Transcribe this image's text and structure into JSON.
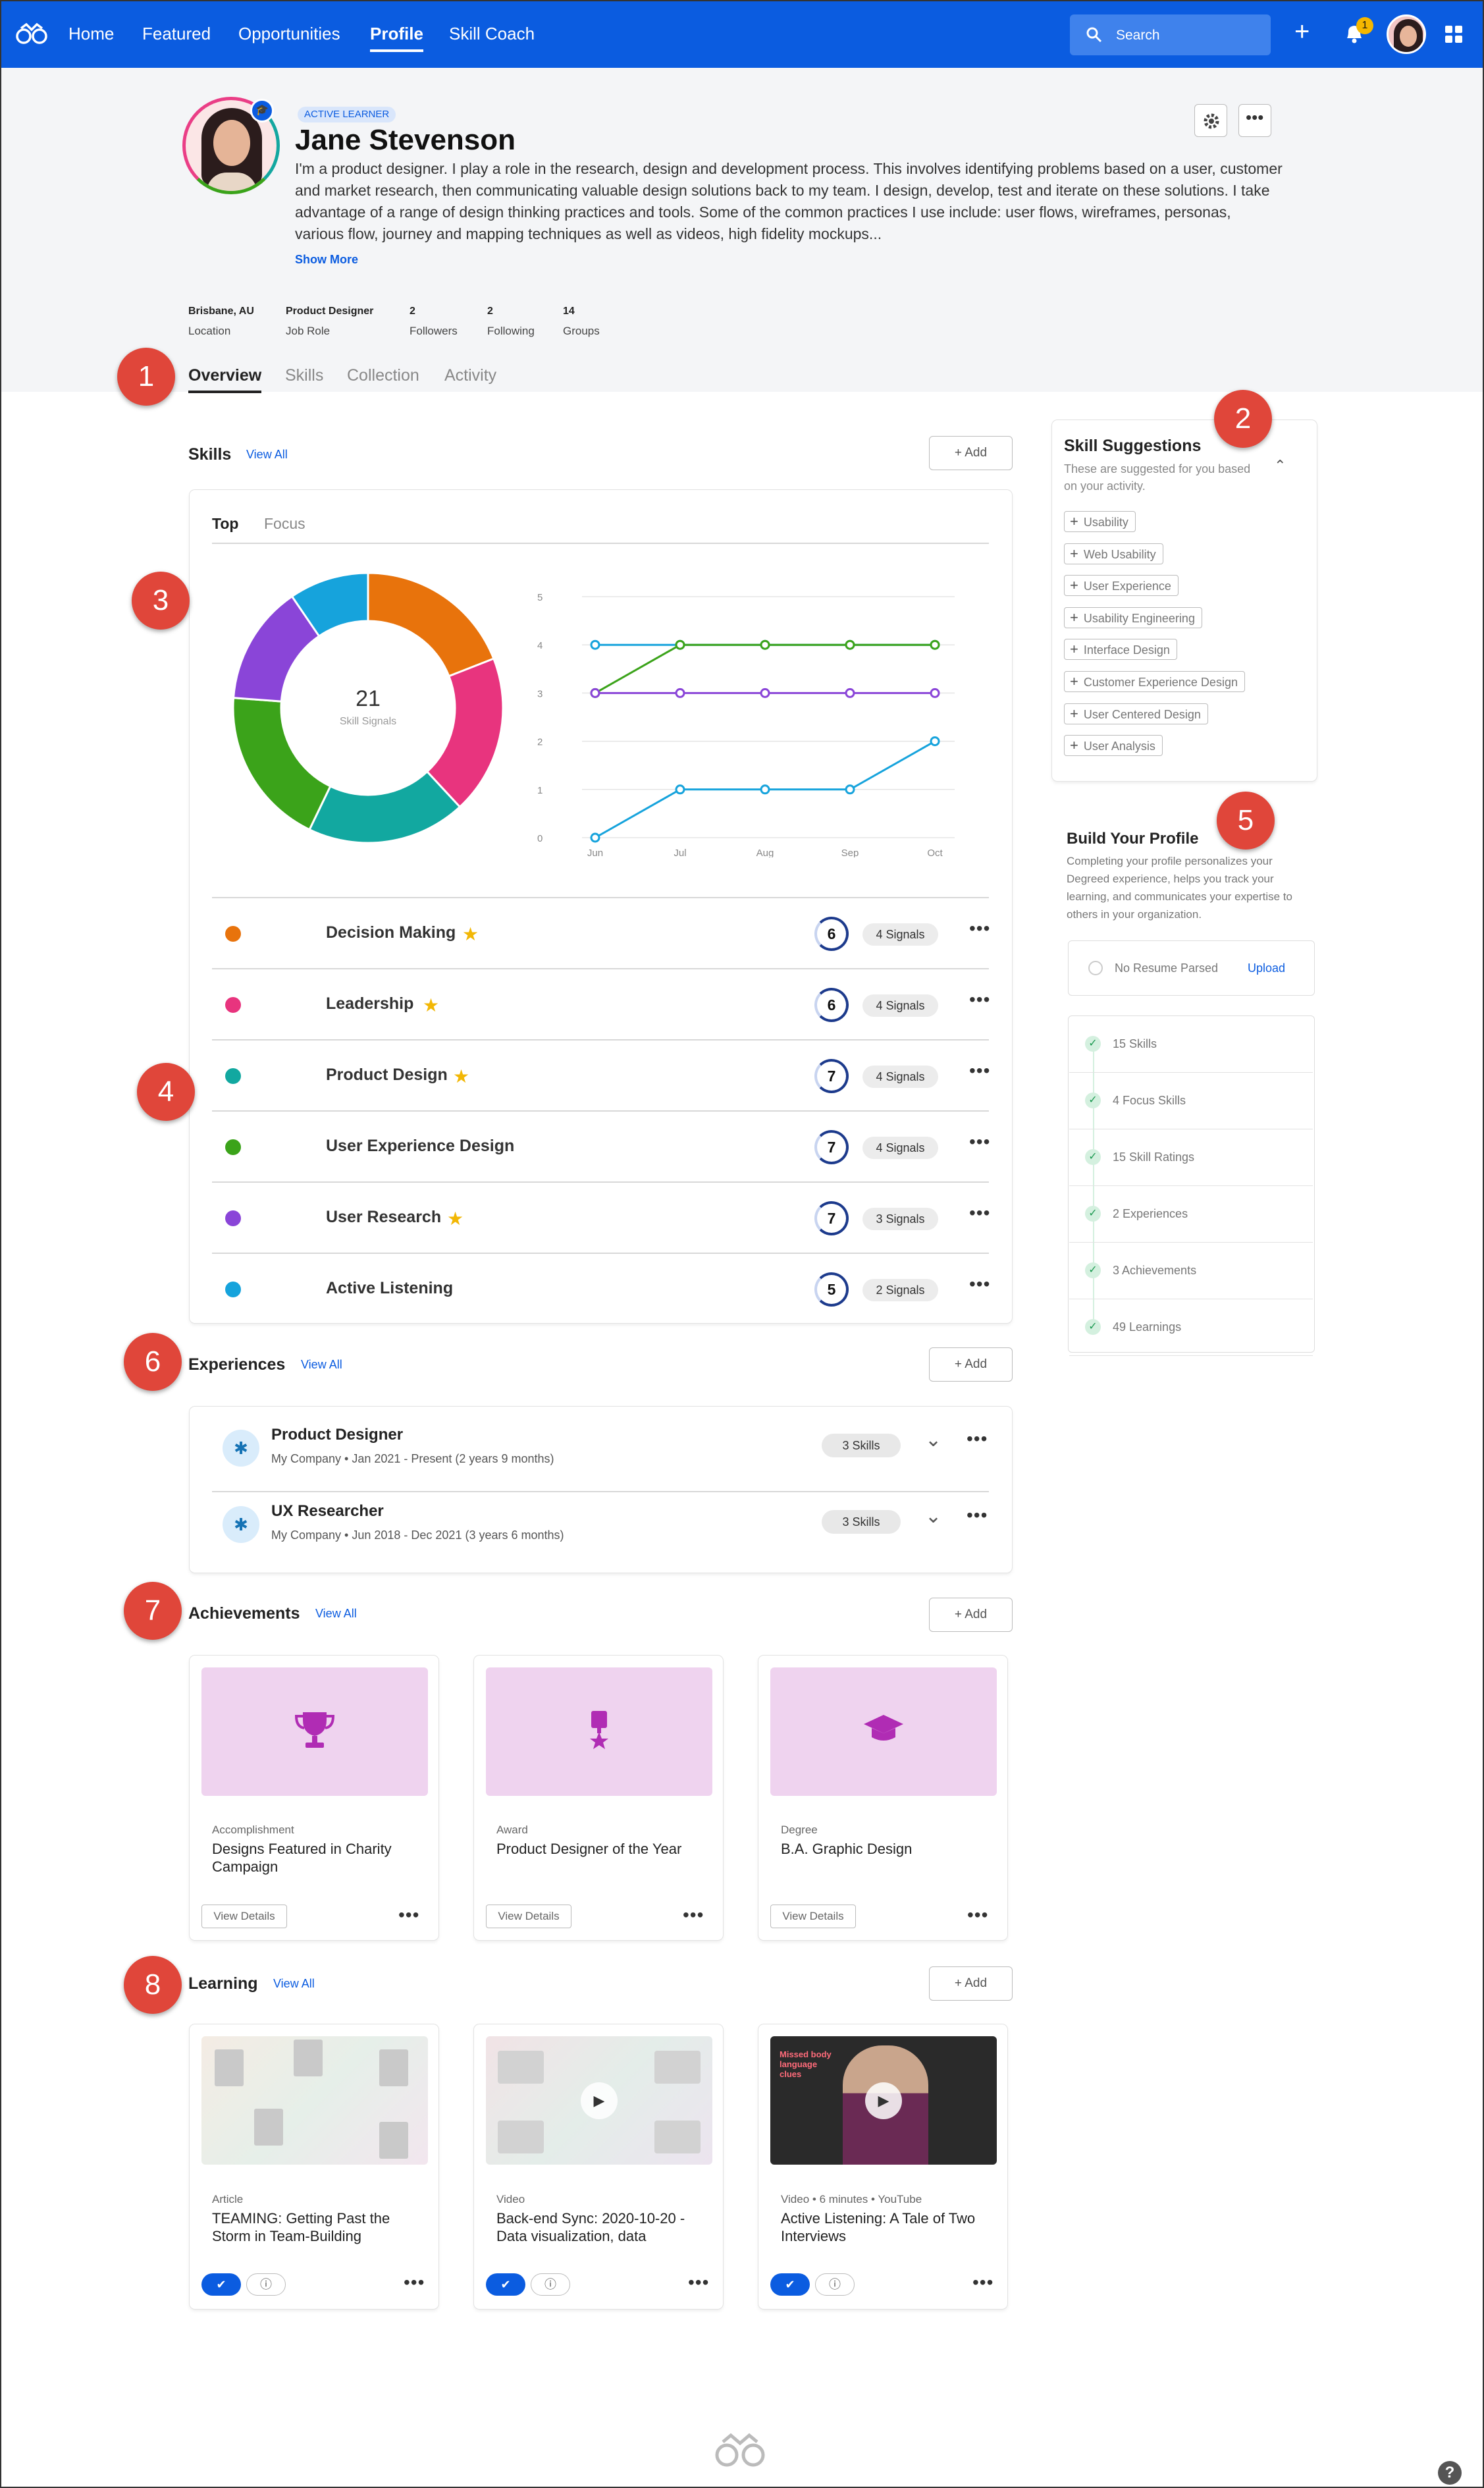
{
  "nav": {
    "items": [
      "Home",
      "Featured",
      "Opportunities",
      "Profile",
      "Skill Coach"
    ],
    "search_label": "Search",
    "notification_count": "1"
  },
  "profile": {
    "badge": "ACTIVE LEARNER",
    "name": "Jane Stevenson",
    "bio": "I'm a product designer. I play a role in the research, design and development process. This involves identifying problems based on a user, customer and market research, then communicating valuable design solutions back to my team. I design, develop, test and iterate on these solutions. I take advantage of a range of design thinking practices and tools. Some of the common practices I use include: user flows, wireframes, personas, various flow, journey and mapping techniques as well as videos, high fidelity mockups...",
    "show_more": "Show More",
    "meta": [
      {
        "value": "Brisbane, AU",
        "label": "Location"
      },
      {
        "value": "Product Designer",
        "label": "Job Role"
      },
      {
        "value": "2",
        "label": "Followers"
      },
      {
        "value": "2",
        "label": "Following"
      },
      {
        "value": "14",
        "label": "Groups"
      }
    ],
    "tabs": [
      "Overview",
      "Skills",
      "Collection",
      "Activity"
    ]
  },
  "skills": {
    "title": "Skills",
    "view_all": "View All",
    "add": "Add",
    "subtabs": [
      "Top",
      "Focus"
    ],
    "donut_total": "21",
    "donut_label": "Skill Signals",
    "rows": [
      {
        "name": "Decision Making",
        "color": "#e8730c",
        "star": true,
        "level": "6",
        "signals": "4 Signals"
      },
      {
        "name": "Leadership",
        "color": "#e8347e",
        "star": true,
        "level": "6",
        "signals": "4 Signals"
      },
      {
        "name": "Product Design",
        "color": "#12a8a0",
        "star": true,
        "level": "7",
        "signals": "4 Signals"
      },
      {
        "name": "User Experience Design",
        "color": "#3ba31a",
        "star": false,
        "level": "7",
        "signals": "4 Signals"
      },
      {
        "name": "User Research",
        "color": "#8a45d8",
        "star": true,
        "level": "7",
        "signals": "3 Signals"
      },
      {
        "name": "Active Listening",
        "color": "#16a3dc",
        "star": false,
        "level": "5",
        "signals": "2 Signals"
      }
    ]
  },
  "chart_data": [
    {
      "type": "pie",
      "donut": true,
      "center_value": "21",
      "center_label": "Skill Signals",
      "categories": [
        "Decision Making",
        "Leadership",
        "Product Design",
        "User Experience Design",
        "User Research",
        "Active Listening"
      ],
      "values": [
        4,
        4,
        4,
        4,
        3,
        2
      ],
      "colors": [
        "#e8730c",
        "#e8347e",
        "#12a8a0",
        "#3ba31a",
        "#8a45d8",
        "#16a3dc"
      ]
    },
    {
      "type": "line",
      "x": [
        "Jun",
        "Jul",
        "Aug",
        "Sep",
        "Oct"
      ],
      "ylim": [
        0,
        5
      ],
      "yticks": [
        0,
        1,
        2,
        3,
        4,
        5
      ],
      "grid": true,
      "series": [
        {
          "values": [
            4,
            4,
            4,
            4,
            4
          ],
          "color": "#16a3dc"
        },
        {
          "values": [
            3,
            4,
            4,
            4,
            4
          ],
          "color": "#3ba31a"
        },
        {
          "values": [
            3,
            3,
            3,
            3,
            3
          ],
          "color": "#8a45d8"
        },
        {
          "values": [
            0,
            1,
            1,
            1,
            2
          ],
          "color": "#16a3dc"
        }
      ]
    }
  ],
  "suggestions": {
    "title": "Skill Suggestions",
    "subtitle": "These are suggested for you based on your activity.",
    "items": [
      "Usability",
      "Web Usability",
      "User Experience",
      "Usability Engineering",
      "Interface Design",
      "Customer Experience Design",
      "User Centered Design",
      "User Analysis"
    ]
  },
  "build": {
    "title": "Build Your Profile",
    "desc": "Completing your profile personalizes your Degreed experience, helps you track your learning, and communicates your expertise to others in your organization.",
    "resume": "No Resume Parsed",
    "upload": "Upload",
    "checks": [
      "15 Skills",
      "4 Focus Skills",
      "15 Skill Ratings",
      "2 Experiences",
      "3 Achievements",
      "49 Learnings"
    ]
  },
  "experiences": {
    "title": "Experiences",
    "view_all": "View All",
    "add": "Add",
    "items": [
      {
        "title": "Product Designer",
        "sub": "My Company • Jan 2021 - Present (2 years 9 months)",
        "skills": "3 Skills"
      },
      {
        "title": "UX Researcher",
        "sub": "My Company • Jun 2018 - Dec 2021 (3 years 6 months)",
        "skills": "3 Skills"
      }
    ]
  },
  "achievements": {
    "title": "Achievements",
    "view_all": "View All",
    "add": "Add",
    "items": [
      {
        "type": "Accomplishment",
        "title": "Designs Featured in Charity Campaign",
        "icon": "trophy-icon",
        "button": "View Details"
      },
      {
        "type": "Award",
        "title": "Product Designer of the Year",
        "icon": "award-ribbon-icon",
        "button": "View Details"
      },
      {
        "type": "Degree",
        "title": "B.A. Graphic Design",
        "icon": "graduation-cap-icon",
        "button": "View Details"
      }
    ]
  },
  "learning": {
    "title": "Learning",
    "view_all": "View All",
    "add": "Add",
    "items": [
      {
        "type": "Article",
        "title": "TEAMING: Getting Past the Storm in Team-Building"
      },
      {
        "type": "Video",
        "title": "Back-end Sync: 2020-10-20 - Data visualization, data"
      },
      {
        "type": "Video • 6 minutes • YouTube",
        "title": "Active Listening: A Tale of Two Interviews"
      }
    ],
    "thumb_caption": "Missed body language clues"
  },
  "callouts": [
    "1",
    "2",
    "3",
    "4",
    "5",
    "6",
    "7",
    "8"
  ],
  "footer": {
    "help": "?"
  },
  "colors": {
    "brand": "#0b5ce0",
    "header_bg": "#f4f5f7",
    "callout": "#e0463a"
  }
}
